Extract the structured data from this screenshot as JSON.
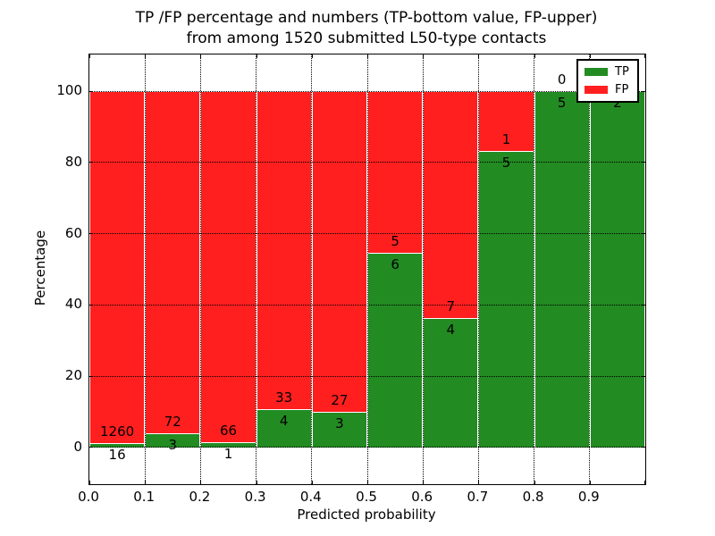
{
  "figure": {
    "title_line1": "TP /FP percentage and numbers (TP-bottom value, FP-upper)",
    "title_line2": "from among 1520 submitted L50-type contacts",
    "xlabel": "Predicted probability",
    "ylabel": "Percentage"
  },
  "chart_data": {
    "type": "bar",
    "stacked": true,
    "normalized_to": 100,
    "title": "TP /FP percentage and numbers (TP-bottom value, FP-upper)\nfrom among 1520 submitted L50-type contacts",
    "xlabel": "Predicted probability",
    "ylabel": "Percentage",
    "total_submitted": 1520,
    "bin_width": 0.1,
    "bin_starts": [
      0.0,
      0.1,
      0.2,
      0.3,
      0.4,
      0.5,
      0.6,
      0.7,
      0.8,
      0.9
    ],
    "series": [
      {
        "name": "TP",
        "color": "#228B22",
        "counts": [
          16,
          3,
          1,
          4,
          3,
          6,
          4,
          5,
          5,
          2
        ],
        "percent": [
          1.25,
          4.0,
          1.49,
          10.81,
          10.0,
          54.55,
          36.36,
          83.33,
          100.0,
          100.0
        ]
      },
      {
        "name": "FP",
        "color": "#FF1F1F",
        "counts": [
          1260,
          72,
          66,
          33,
          27,
          5,
          7,
          1,
          0,
          0
        ],
        "percent": [
          98.75,
          96.0,
          98.51,
          89.19,
          90.0,
          45.45,
          63.64,
          16.67,
          0.0,
          0.0
        ]
      }
    ],
    "bar_label_note": "TP count below segment boundary, FP count above segment boundary",
    "xticklabels": [
      "0.0",
      "0.1",
      "0.2",
      "0.3",
      "0.4",
      "0.5",
      "0.6",
      "0.7",
      "0.8",
      "0.9"
    ],
    "yticks": [
      0,
      20,
      40,
      60,
      80,
      100
    ],
    "xlim": [
      0.0,
      1.0
    ],
    "ylim": [
      -10.3,
      110.3
    ],
    "grid": "dotted black, both axes, drawn above bars",
    "bar_edge_color": "#FFFFFF",
    "legend": {
      "position": "upper right",
      "entries": [
        {
          "label": "TP",
          "color": "#228B22"
        },
        {
          "label": "FP",
          "color": "#FF1F1F"
        }
      ]
    }
  }
}
